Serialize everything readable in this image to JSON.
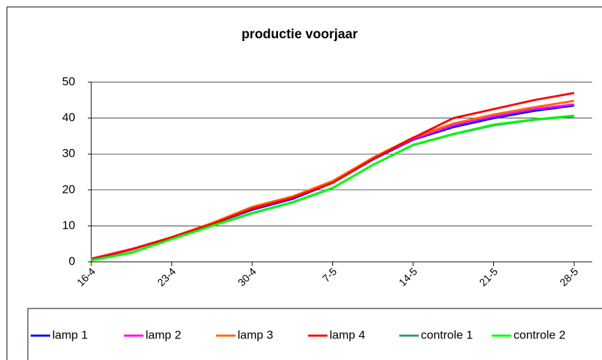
{
  "chart_data": {
    "type": "line",
    "title": "productie voorjaar",
    "categories": [
      "16-4",
      null,
      "23-4",
      null,
      "30-4",
      null,
      "7-5",
      null,
      "14-5",
      null,
      "21-5",
      null,
      "28-5"
    ],
    "series": [
      {
        "name": "lamp 1",
        "color": "#0000ff",
        "values": [
          0.8,
          3.5,
          6.8,
          10.5,
          14.5,
          17.5,
          22,
          28.5,
          34,
          37.5,
          40,
          42,
          43.5
        ]
      },
      {
        "name": "lamp 2",
        "color": "#ff00ff",
        "values": [
          0.9,
          3.6,
          6.8,
          10.6,
          14.8,
          17.8,
          22.2,
          28.7,
          34.2,
          38,
          40.5,
          42.5,
          43.8
        ]
      },
      {
        "name": "lamp 3",
        "color": "#ff6600",
        "values": [
          0.8,
          3.5,
          6.9,
          10.8,
          15.3,
          18.2,
          22.5,
          29,
          34.6,
          38.5,
          41,
          43,
          44.8
        ]
      },
      {
        "name": "lamp 4",
        "color": "#ff0000",
        "values": [
          0.7,
          3.4,
          6.8,
          10.5,
          14.8,
          17.8,
          22,
          28.6,
          34.5,
          40,
          42.5,
          45,
          47
        ]
      },
      {
        "name": "controle 1",
        "color": "#339966",
        "values": [
          0.5,
          2.6,
          6.3,
          10,
          13.5,
          16.5,
          20.5,
          27,
          32.5,
          35.5,
          38,
          39.5,
          40.5
        ]
      },
      {
        "name": "controle 2",
        "color": "#00ff00",
        "values": [
          0.4,
          2.5,
          6.3,
          10,
          13.6,
          16.6,
          20.6,
          27,
          32.6,
          35.6,
          38.2,
          39.6,
          40.7
        ]
      }
    ],
    "ylim": [
      0,
      50
    ],
    "yticks": [
      0,
      10,
      20,
      30,
      40,
      50
    ],
    "grid": true,
    "legend": "bottom"
  }
}
